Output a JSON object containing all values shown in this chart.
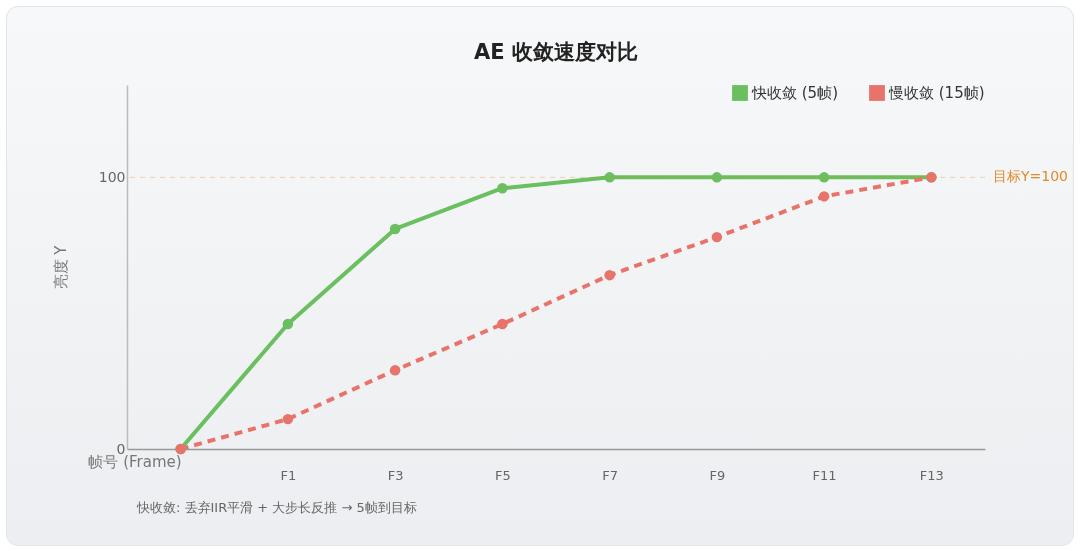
{
  "chart_data": {
    "type": "line",
    "title": "AE 收敛速度对比",
    "xlabel": "帧号 (Frame)",
    "ylabel": "亮度 Y",
    "categories": [
      null,
      "F1",
      "F3",
      "F5",
      "F7",
      "F9",
      "F11",
      "F13"
    ],
    "series": [
      {
        "name": "快收敛 (5帧)",
        "color": "#6abf5e",
        "line_style": "solid",
        "values": [
          0,
          46,
          81,
          96,
          100,
          100,
          100,
          100
        ]
      },
      {
        "name": "慢收敛 (15帧)",
        "color": "#e8736b",
        "line_style": "dashed",
        "values": [
          0,
          11,
          29,
          46,
          64,
          78,
          93,
          100
        ]
      }
    ],
    "ylim": [
      0,
      134
    ],
    "yticks": [
      0,
      100
    ],
    "grid": false,
    "legend": "top right",
    "marker": "circle",
    "ref_lines": [
      {
        "axis": "y",
        "value": 100,
        "label": "目标Y=100",
        "color": "#e08a2c"
      }
    ],
    "annotations": [
      "快收敛: 丢弃IIR平滑 + 大步长反推 → 5帧到目标"
    ]
  }
}
